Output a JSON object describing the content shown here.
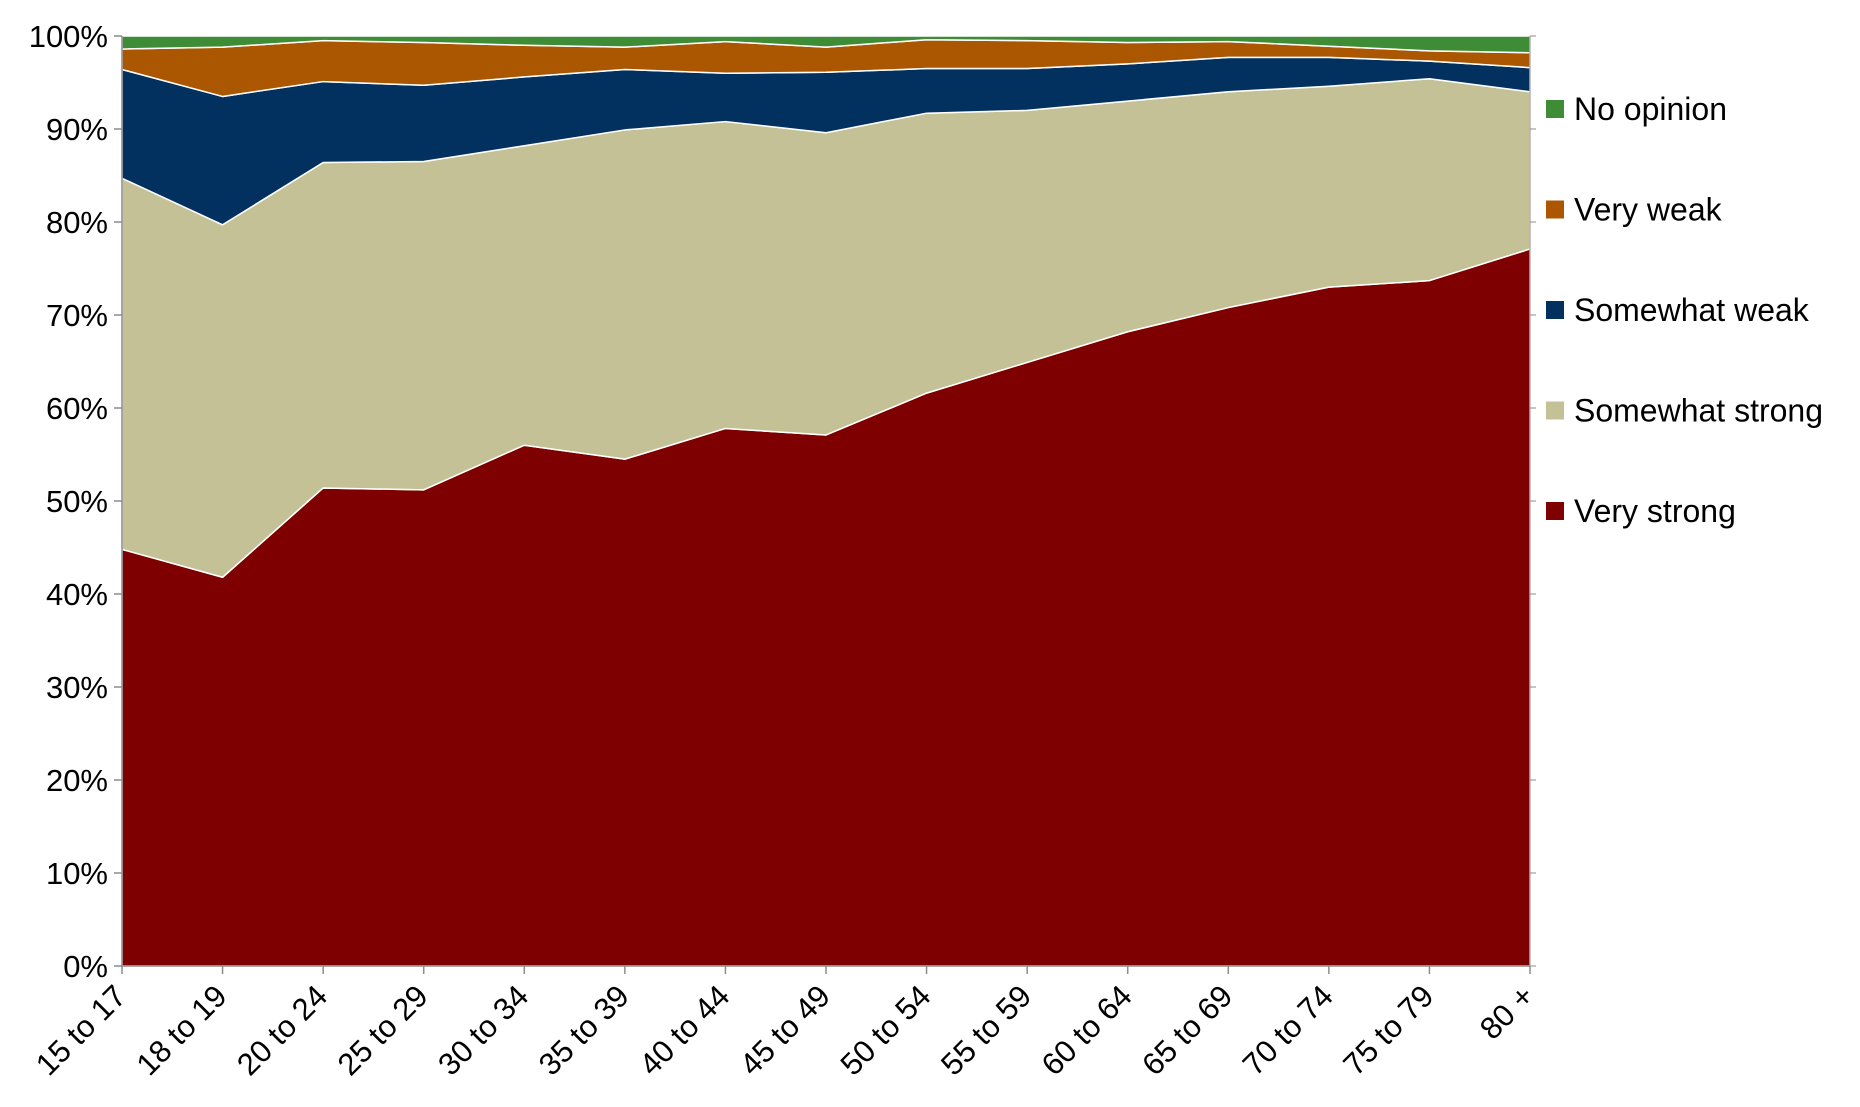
{
  "chart_data": {
    "type": "area",
    "stacked": true,
    "normalized": true,
    "categories": [
      "15 to 17",
      "18 to 19",
      "20 to 24",
      "25 to 29",
      "30 to 34",
      "35 to 39",
      "40 to 44",
      "45 to 49",
      "50 to 54",
      "55 to 59",
      "60 to 64",
      "65 to 69",
      "70 to 74",
      "75 to 79",
      "80 +"
    ],
    "series": [
      {
        "name": "Very strong",
        "color": "#7f0000",
        "values": [
          44.8,
          41.8,
          51.4,
          51.2,
          56.0,
          54.5,
          57.8,
          57.1,
          61.6,
          64.9,
          68.2,
          70.8,
          73.0,
          73.7,
          77.1
        ]
      },
      {
        "name": "Somewhat strong",
        "color": "#c4c197",
        "values": [
          39.9,
          37.9,
          35.0,
          35.3,
          32.2,
          35.4,
          33.0,
          32.5,
          30.1,
          27.1,
          24.8,
          23.2,
          21.6,
          21.7,
          16.9
        ]
      },
      {
        "name": "Somewhat weak",
        "color": "#02305f",
        "values": [
          11.7,
          13.8,
          8.7,
          8.2,
          7.4,
          6.5,
          5.2,
          6.5,
          4.8,
          4.5,
          4.0,
          3.7,
          3.1,
          1.9,
          2.6
        ]
      },
      {
        "name": "Very weak",
        "color": "#ab5601",
        "values": [
          2.2,
          5.3,
          4.4,
          4.6,
          3.4,
          2.4,
          3.4,
          2.7,
          3.1,
          3.0,
          2.3,
          1.7,
          1.2,
          1.1,
          1.6
        ]
      },
      {
        "name": "No opinion",
        "color": "#3e8d36",
        "values": [
          1.4,
          1.2,
          0.5,
          0.7,
          1.0,
          1.2,
          0.6,
          1.2,
          0.4,
          0.5,
          0.7,
          0.6,
          1.1,
          1.6,
          1.8
        ]
      }
    ],
    "legend_order": [
      "No opinion",
      "Very weak",
      "Somewhat weak",
      "Somewhat strong",
      "Very strong"
    ],
    "y_ticks": [
      "0%",
      "10%",
      "20%",
      "30%",
      "40%",
      "50%",
      "60%",
      "70%",
      "80%",
      "90%",
      "100%"
    ],
    "ylim": [
      0,
      100
    ],
    "legend_position": "right",
    "grid": false,
    "title": "",
    "xlabel": "",
    "ylabel": ""
  }
}
